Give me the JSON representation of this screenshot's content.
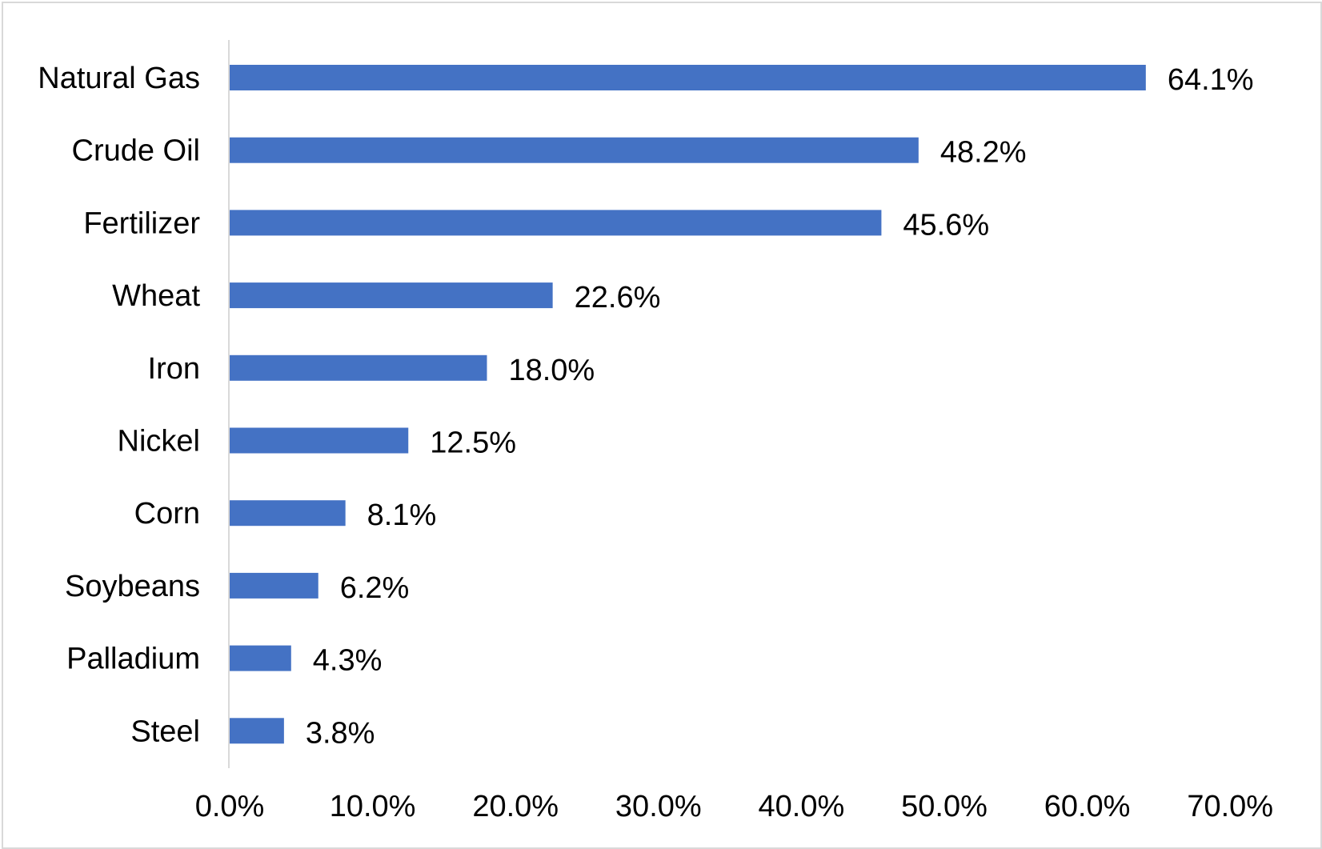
{
  "chart_data": {
    "type": "bar",
    "orientation": "horizontal",
    "title": "",
    "xlabel": "",
    "ylabel": "",
    "categories": [
      "Natural Gas",
      "Crude Oil",
      "Fertilizer",
      "Wheat",
      "Iron",
      "Nickel",
      "Corn",
      "Soybeans",
      "Palladium",
      "Steel"
    ],
    "values": [
      64.1,
      48.2,
      45.6,
      22.6,
      18.0,
      12.5,
      8.1,
      6.2,
      4.3,
      3.8
    ],
    "data_labels": [
      "64.1%",
      "48.2%",
      "45.6%",
      "22.6%",
      "18.0%",
      "12.5%",
      "8.1%",
      "6.2%",
      "4.3%",
      "3.8%"
    ],
    "xlim": [
      0,
      70
    ],
    "x_ticks": [
      0,
      10,
      20,
      30,
      40,
      50,
      60,
      70
    ],
    "x_tick_labels": [
      "0.0%",
      "10.0%",
      "20.0%",
      "30.0%",
      "40.0%",
      "50.0%",
      "60.0%",
      "70.0%"
    ],
    "grid": false,
    "legend": "none",
    "bar_color": "#4472C4",
    "axis_color": "#d9d9d9"
  }
}
